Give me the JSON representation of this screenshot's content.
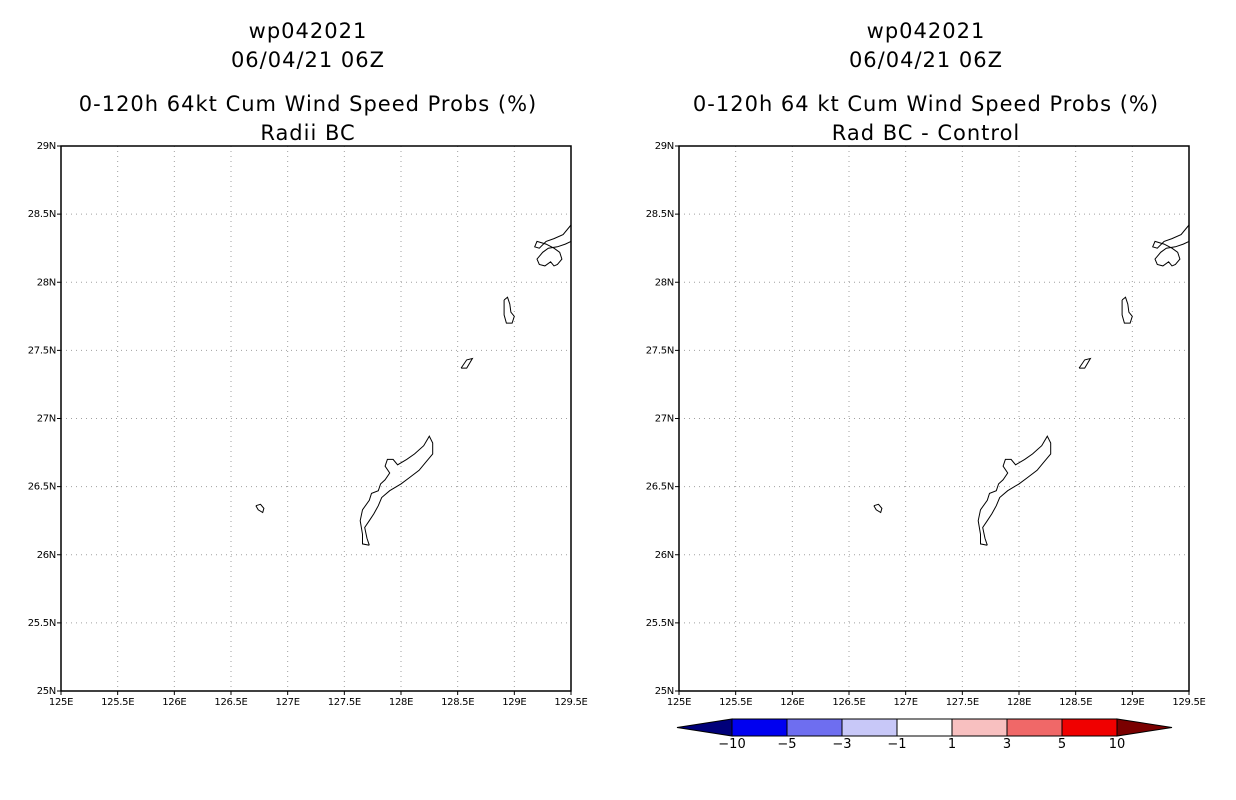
{
  "chart_data": [
    {
      "type": "map",
      "title_lines": [
        "wp042021",
        "06/04/21 06Z",
        "0-120h 64kt Cum Wind Speed Probs (%)",
        "Radii BC"
      ],
      "lon_range": [
        125,
        129.5
      ],
      "lat_range": [
        25,
        29
      ],
      "x_ticks": [
        "125E",
        "125.5E",
        "126E",
        "126.5E",
        "127E",
        "127.5E",
        "128E",
        "128.5E",
        "129E",
        "129.5E"
      ],
      "y_ticks": [
        "25N",
        "25.5N",
        "26N",
        "26.5N",
        "27N",
        "27.5N",
        "28N",
        "28.5N",
        "29N"
      ],
      "grid": "dotted",
      "values": "no shaded probabilities (0%)"
    },
    {
      "type": "map",
      "title_lines": [
        "wp042021",
        "06/04/21 06Z",
        "0-120h 64 kt Cum Wind Speed Probs (%)",
        "Rad BC - Control"
      ],
      "lon_range": [
        125,
        129.5
      ],
      "lat_range": [
        25,
        29
      ],
      "x_ticks": [
        "125E",
        "125.5E",
        "126E",
        "126.5E",
        "127E",
        "127.5E",
        "128E",
        "128.5E",
        "129E",
        "129.5E"
      ],
      "y_ticks": [
        "25N",
        "25.5N",
        "26N",
        "26.5N",
        "27N",
        "27.5N",
        "28N",
        "28.5N",
        "29N"
      ],
      "grid": "dotted",
      "values": "no shaded differences",
      "colorbar": {
        "labels": [
          "-10",
          "-5",
          "-3",
          "-1",
          "1",
          "3",
          "5",
          "10"
        ],
        "colors": [
          "#00007a",
          "#0000f0",
          "#6e6ef0",
          "#c8c8f8",
          "#ffffff",
          "#f8c0c0",
          "#f06868",
          "#f00000",
          "#7a0000"
        ]
      }
    }
  ],
  "coastline_color": "#000000",
  "grid_color": "#a0a0a0"
}
